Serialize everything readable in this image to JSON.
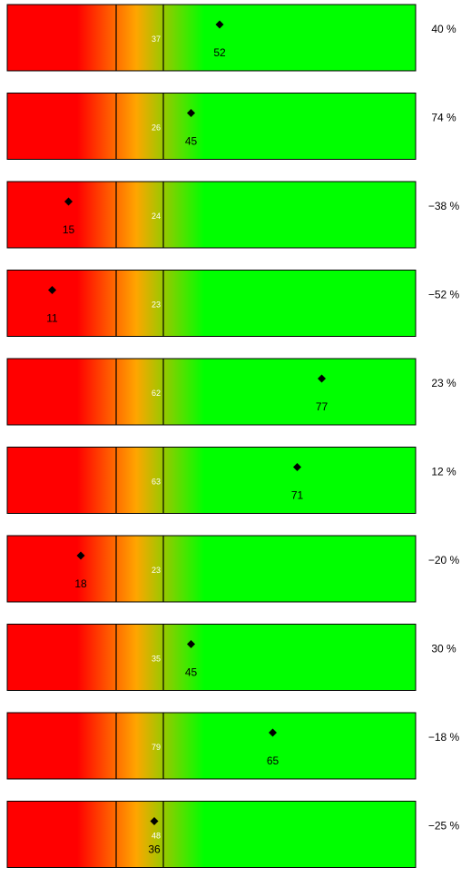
{
  "chart_data": {
    "type": "bullet",
    "rows": [
      {
        "reference": 37,
        "value": 52,
        "change": "40 %"
      },
      {
        "reference": 26,
        "value": 45,
        "change": "74 %"
      },
      {
        "reference": 24,
        "value": 15,
        "change": "−38 %"
      },
      {
        "reference": 23,
        "value": 11,
        "change": "−52 %"
      },
      {
        "reference": 62,
        "value": 77,
        "change": "23 %"
      },
      {
        "reference": 63,
        "value": 71,
        "change": "12 %"
      },
      {
        "reference": 23,
        "value": 18,
        "change": "−20 %"
      },
      {
        "reference": 35,
        "value": 45,
        "change": "30 %"
      },
      {
        "reference": 79,
        "value": 65,
        "change": "−18 %"
      },
      {
        "reference": 48,
        "value": 36,
        "change": "−25 %"
      }
    ],
    "colors": {
      "bad": "#ff0000",
      "medium": "#ffa500",
      "good": "#00ff00",
      "marker": "#000000",
      "reference_text": "#ffffff"
    }
  }
}
